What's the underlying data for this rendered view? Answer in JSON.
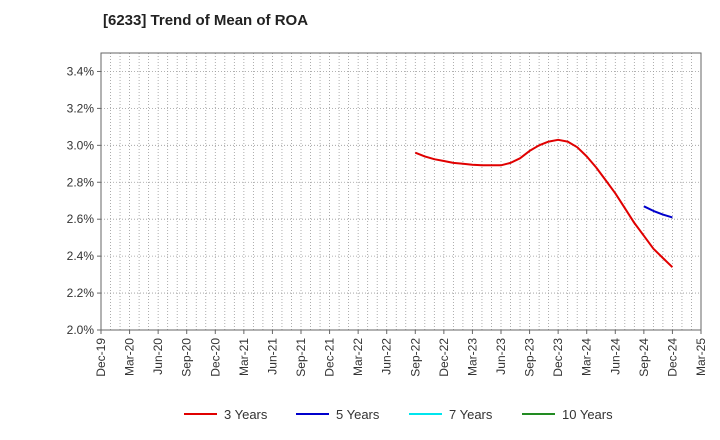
{
  "chart_data": {
    "type": "line",
    "title": "[6233]  Trend of Mean of ROA",
    "xlabel": "",
    "ylabel": "",
    "ylim": [
      2.0,
      3.5
    ],
    "yticks": [
      "2.0%",
      "2.2%",
      "2.4%",
      "2.6%",
      "2.8%",
      "3.0%",
      "3.2%",
      "3.4%"
    ],
    "ytick_values": [
      2.0,
      2.2,
      2.4,
      2.6,
      2.8,
      3.0,
      3.2,
      3.4
    ],
    "xticks": [
      "Dec-19",
      "Mar-20",
      "Jun-20",
      "Sep-20",
      "Dec-20",
      "Mar-21",
      "Jun-21",
      "Sep-21",
      "Dec-21",
      "Mar-22",
      "Jun-22",
      "Sep-22",
      "Dec-22",
      "Mar-23",
      "Jun-23",
      "Sep-23",
      "Dec-23",
      "Mar-24",
      "Jun-24",
      "Sep-24",
      "Dec-24",
      "Mar-25"
    ],
    "grid": true,
    "legend_placement": "bottom",
    "series": [
      {
        "name": "3 Years",
        "color": "#e00000",
        "x": [
          "Sep-22",
          "Oct-22",
          "Nov-22",
          "Dec-22",
          "Jan-23",
          "Feb-23",
          "Mar-23",
          "Apr-23",
          "May-23",
          "Jun-23",
          "Jul-23",
          "Aug-23",
          "Sep-23",
          "Oct-23",
          "Nov-23",
          "Dec-23",
          "Jan-24",
          "Feb-24",
          "Mar-24",
          "Apr-24",
          "May-24",
          "Jun-24",
          "Jul-24",
          "Aug-24",
          "Sep-24",
          "Oct-24",
          "Nov-24",
          "Dec-24"
        ],
        "values": [
          2.96,
          2.94,
          2.925,
          2.915,
          2.905,
          2.9,
          2.895,
          2.892,
          2.892,
          2.892,
          2.905,
          2.93,
          2.97,
          3.0,
          3.02,
          3.03,
          3.02,
          2.99,
          2.94,
          2.88,
          2.81,
          2.74,
          2.66,
          2.58,
          2.51,
          2.44,
          2.39,
          2.34
        ]
      },
      {
        "name": "5 Years",
        "color": "#0000cc",
        "x": [
          "Sep-24",
          "Oct-24",
          "Nov-24",
          "Dec-24"
        ],
        "values": [
          2.67,
          2.645,
          2.625,
          2.61
        ]
      },
      {
        "name": "7 Years",
        "color": "#00e5ee",
        "x": [],
        "values": []
      },
      {
        "name": "10 Years",
        "color": "#228b22",
        "x": [],
        "values": []
      }
    ]
  }
}
